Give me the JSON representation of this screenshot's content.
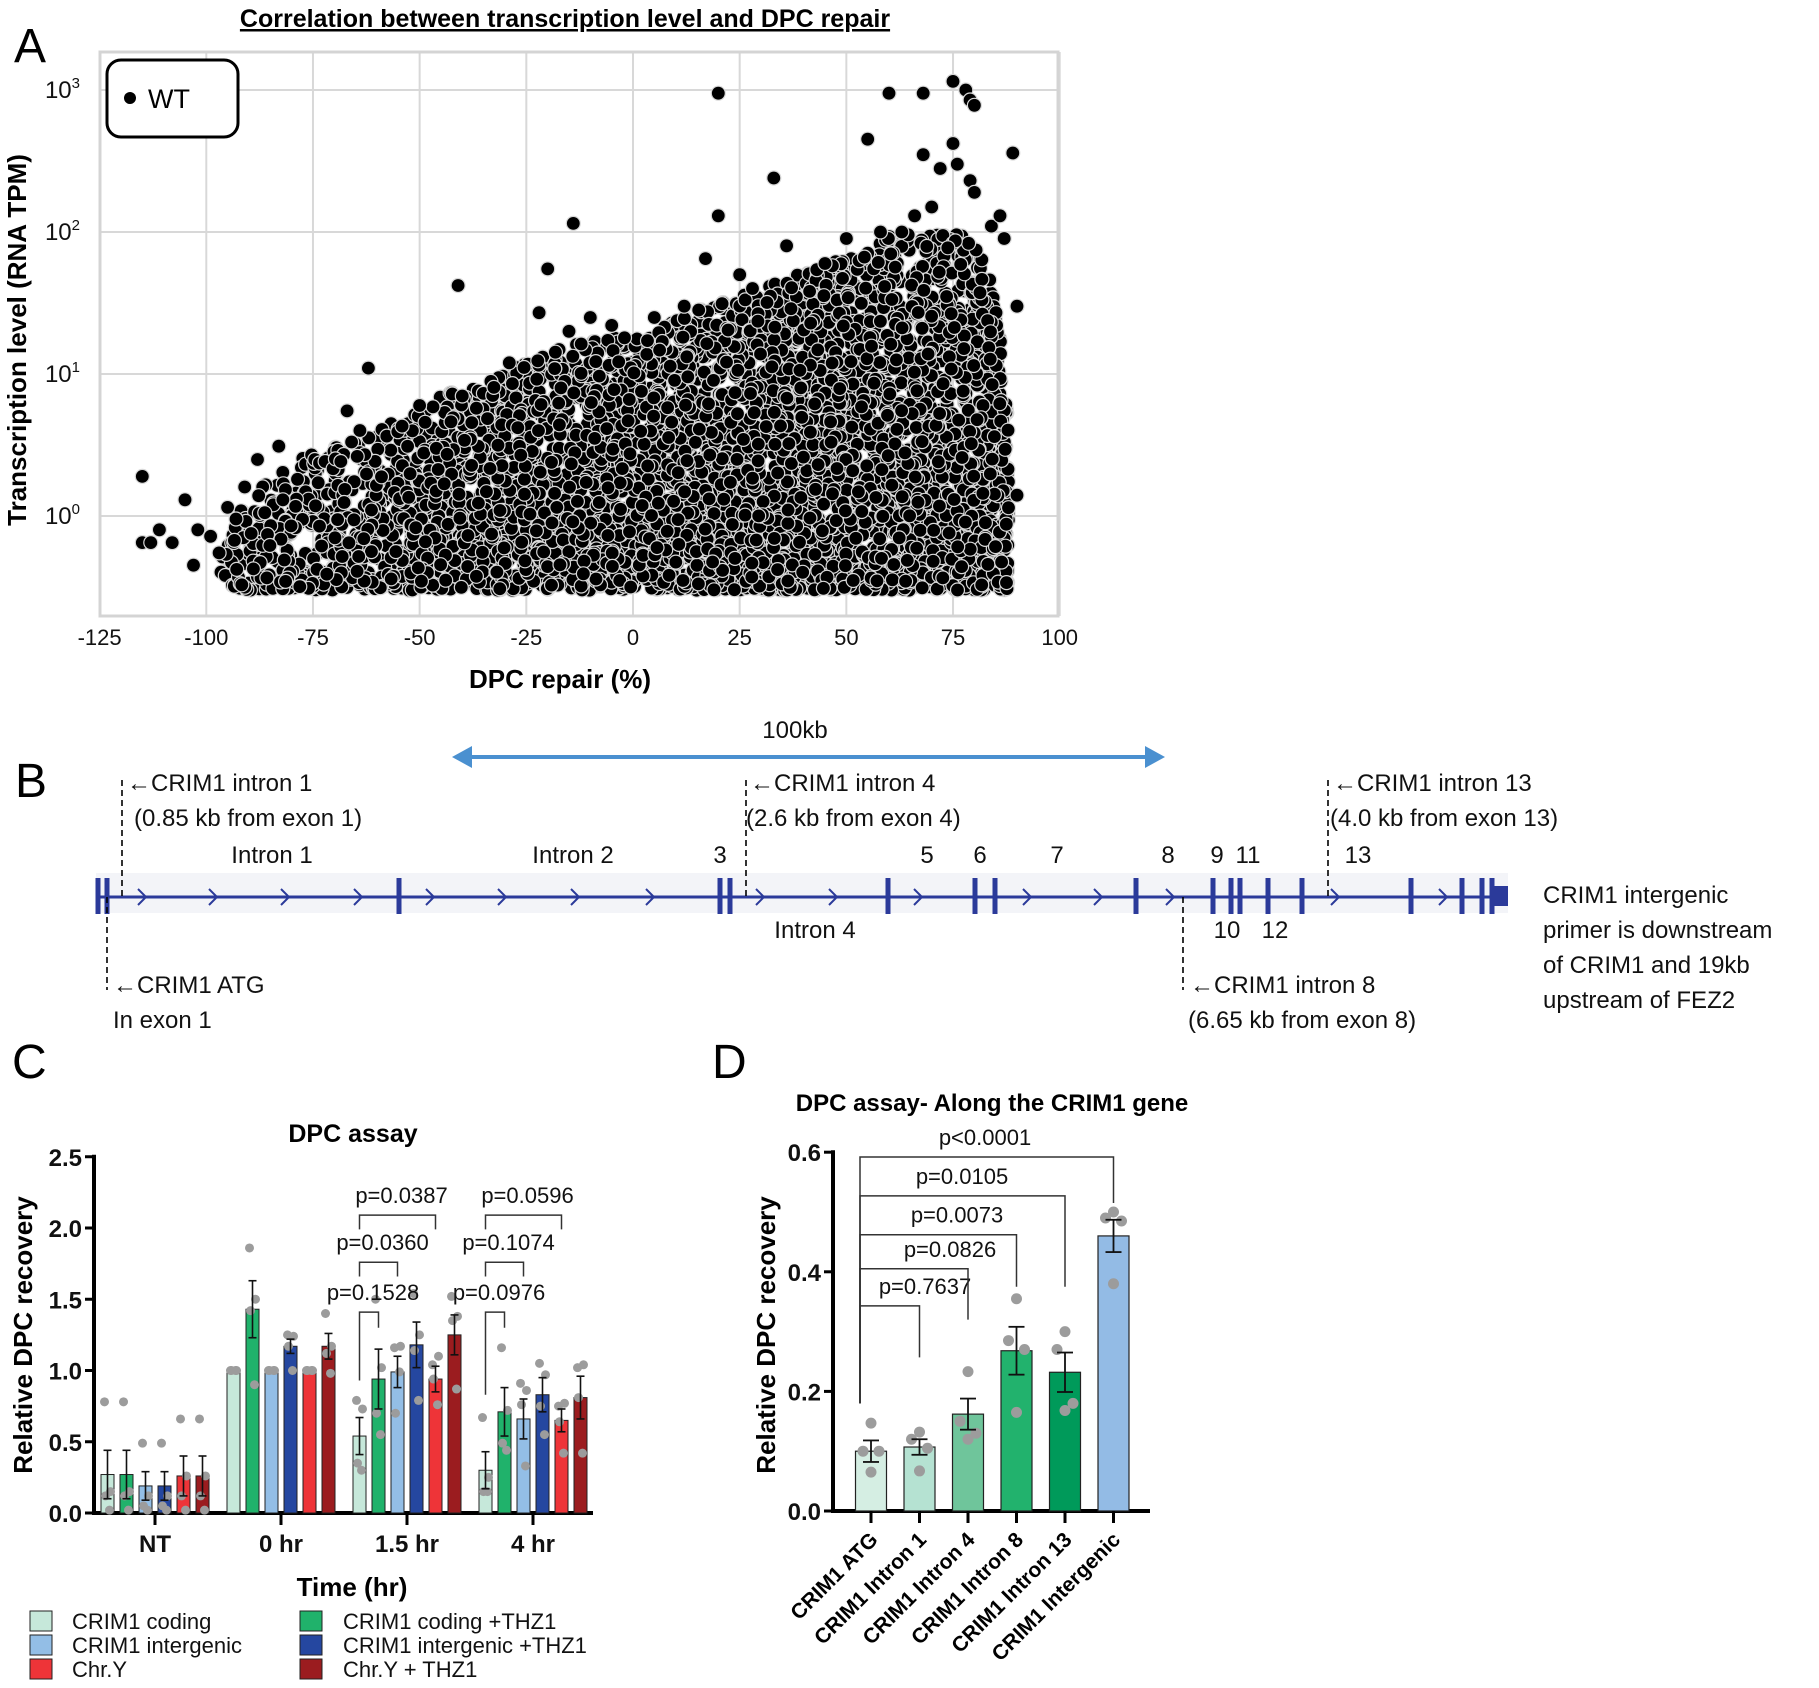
{
  "panels": {
    "a": "A",
    "b": "B",
    "c": "C",
    "d": "D"
  },
  "chart_data": [
    {
      "id": "A",
      "type": "scatter",
      "title": "Correlation between transcription level and DPC repair",
      "xlabel": "DPC repair (%)",
      "ylabel": "Transcription level (RNA TPM)",
      "xlim": [
        -125,
        100
      ],
      "ylim": [
        0.2,
        1850
      ],
      "yscale": "log",
      "xticks": [
        "-125",
        "-100",
        "-75",
        "-50",
        "-25",
        "0",
        "25",
        "50",
        "75",
        "100"
      ],
      "yticks": [
        {
          "value": 1000,
          "base": "10",
          "exp": "3"
        },
        {
          "value": 100,
          "base": "10",
          "exp": "2"
        },
        {
          "value": 10,
          "base": "10",
          "exp": "1"
        },
        {
          "value": 1,
          "base": "10",
          "exp": "0"
        }
      ],
      "grid": true,
      "legend": {
        "position": "top-left",
        "entries": [
          "WT"
        ]
      },
      "series": [
        {
          "name": "WT",
          "color": "#000000",
          "outliers": [
            [
              20,
              950
            ],
            [
              60,
              950
            ],
            [
              68,
              950
            ],
            [
              75,
              1150
            ],
            [
              78,
              1000
            ],
            [
              79,
              850
            ],
            [
              80,
              780
            ],
            [
              55,
              450
            ],
            [
              75,
              420
            ],
            [
              89,
              360
            ],
            [
              68,
              350
            ],
            [
              72,
              280
            ],
            [
              76,
              300
            ],
            [
              79,
              230
            ],
            [
              80,
              190
            ],
            [
              33,
              240
            ],
            [
              20,
              130
            ],
            [
              -14,
              115
            ],
            [
              -41,
              42
            ],
            [
              -20,
              55
            ],
            [
              -62,
              11
            ],
            [
              -115,
              1.9
            ],
            [
              -115,
              0.65
            ],
            [
              -113,
              0.65
            ],
            [
              -111,
              0.8
            ],
            [
              -108,
              0.65
            ],
            [
              -105,
              1.3
            ],
            [
              -103,
              0.45
            ],
            [
              -102,
              0.8
            ],
            [
              -99,
              0.72
            ],
            [
              90,
              30
            ],
            [
              90,
              1.4
            ],
            [
              17,
              65
            ],
            [
              66,
              130
            ],
            [
              70,
              150
            ],
            [
              36,
              80
            ],
            [
              -22,
              27
            ],
            [
              -29,
              12
            ],
            [
              -67,
              5.5
            ],
            [
              -64,
              4
            ],
            [
              -50,
              6
            ],
            [
              -40,
              7
            ],
            [
              -83,
              3.1
            ],
            [
              -88,
              2.5
            ],
            [
              -91,
              1.6
            ],
            [
              -95,
              1.15
            ],
            [
              -97,
              0.55
            ],
            [
              45,
              60
            ],
            [
              50,
              90
            ],
            [
              58,
              100
            ],
            [
              63,
              100
            ],
            [
              84,
              110
            ],
            [
              86,
              130
            ],
            [
              87,
              90
            ],
            [
              -5,
              22
            ],
            [
              5,
              25
            ],
            [
              12,
              30
            ],
            [
              25,
              50
            ],
            [
              28,
              40
            ],
            [
              -10,
              25
            ],
            [
              -15,
              20
            ],
            [
              -2,
              18
            ]
          ],
          "cloud": {
            "x_range": [
              -97,
              88
            ],
            "lower": 0.3,
            "upper_envelope": [
              [
                -97,
                0.45
              ],
              [
                -92,
                1.2
              ],
              [
                -85,
                1.8
              ],
              [
                -78,
                2.5
              ],
              [
                -72,
                3
              ],
              [
                -65,
                3.5
              ],
              [
                -55,
                5
              ],
              [
                -45,
                7
              ],
              [
                -35,
                9
              ],
              [
                -25,
                12
              ],
              [
                -15,
                16
              ],
              [
                -5,
                18
              ],
              [
                5,
                20
              ],
              [
                15,
                28
              ],
              [
                25,
                35
              ],
              [
                35,
                45
              ],
              [
                45,
                60
              ],
              [
                55,
                80
              ],
              [
                62,
                100
              ],
              [
                70,
                95
              ],
              [
                78,
                100
              ],
              [
                83,
                60
              ],
              [
                86,
                20
              ],
              [
                88,
                4
              ]
            ],
            "approx_points": 5200
          }
        }
      ]
    },
    {
      "id": "C",
      "type": "bar",
      "title": "DPC assay",
      "xlabel": "Time (hr)",
      "ylabel": "Relative DPC recovery",
      "ylim": [
        0,
        2.5
      ],
      "yticks": [
        "0.0",
        "0.5",
        "1.0",
        "1.5",
        "2.0",
        "2.5"
      ],
      "categories": [
        "NT",
        "0 hr",
        "1.5 hr",
        "4 hr"
      ],
      "series": [
        {
          "name": "CRIM1 coding",
          "color": "#c6e8da",
          "values": [
            0.27,
            1.0,
            0.54,
            0.3
          ],
          "sem": [
            0.17,
            0,
            0.13,
            0.13
          ],
          "points": [
            [
              0.78,
              0.15,
              0.12,
              0.02
            ],
            [
              1,
              1,
              1,
              1
            ],
            [
              0.79,
              0.73,
              0.35,
              0.3
            ],
            [
              0.67,
              0.25,
              0.15,
              0.15
            ]
          ]
        },
        {
          "name": "CRIM1 coding  +THZ1",
          "color": "#20b26b",
          "values": [
            0.27,
            1.43,
            0.94,
            0.71
          ],
          "sem": [
            0.17,
            0.2,
            0.21,
            0.17
          ],
          "points": [
            [
              0.78,
              0.15,
              0.12,
              0.02
            ],
            [
              1.86,
              1.5,
              1.42,
              0.9
            ],
            [
              1.5,
              1.02,
              0.7,
              0.55
            ],
            [
              1.16,
              0.72,
              0.49,
              0.44
            ]
          ]
        },
        {
          "name": "CRIM1 intergenic",
          "color": "#93bee6",
          "values": [
            0.19,
            1.0,
            0.99,
            0.66
          ],
          "sem": [
            0.1,
            0,
            0.11,
            0.14
          ],
          "points": [
            [
              0.49,
              0.12,
              0.05,
              0.02
            ],
            [
              1,
              1,
              1,
              1
            ],
            [
              1.16,
              1.17,
              0.7,
              0.99
            ],
            [
              0.91,
              0.86,
              0.76,
              0.33
            ]
          ]
        },
        {
          "name": "CRIM1 intergenic +THZ1",
          "color": "#2547a0",
          "values": [
            0.19,
            1.17,
            1.18,
            0.83
          ],
          "sem": [
            0.1,
            0.05,
            0.16,
            0.12
          ],
          "points": [
            [
              0.49,
              0.12,
              0.05,
              0.02
            ],
            [
              1.25,
              1.24,
              1.17,
              1.0
            ],
            [
              1.54,
              1.25,
              1.14,
              0.79
            ],
            [
              1.05,
              0.97,
              0.75,
              0.55
            ]
          ]
        },
        {
          "name": "Chr.Y",
          "color": "#ee3438",
          "values": [
            0.26,
            1.0,
            0.94,
            0.65
          ],
          "sem": [
            0.14,
            0,
            0.09,
            0.08
          ],
          "points": [
            [
              0.66,
              0.26,
              0.12,
              0.02
            ],
            [
              1,
              1,
              1,
              1
            ],
            [
              1.04,
              1.1,
              0.94,
              0.76
            ],
            [
              0.75,
              0.77,
              0.64,
              0.42
            ]
          ]
        },
        {
          "name": "Chr.Y + THZ1",
          "color": "#9b1c1f",
          "values": [
            0.26,
            1.17,
            1.25,
            0.81
          ],
          "sem": [
            0.14,
            0.09,
            0.14,
            0.15
          ],
          "points": [
            [
              0.66,
              0.26,
              0.12,
              0.02
            ],
            [
              1.4,
              1.17,
              1.12,
              0.98
            ],
            [
              1.52,
              1.38,
              1.35,
              0.87
            ],
            [
              1.02,
              1.04,
              0.81,
              0.42
            ]
          ]
        }
      ],
      "legend_order": [
        0,
        1,
        2,
        3,
        4,
        5
      ],
      "comparisons": [
        {
          "category": 2,
          "from": 0,
          "to": 1,
          "y": 1.41,
          "left_end": 0.93,
          "right_end": 1.3,
          "label": "p=0.1528"
        },
        {
          "category": 2,
          "from": 0,
          "to": 2,
          "y": 1.76,
          "left_end": 1.66,
          "right_end": 1.66,
          "label": "p=0.0360"
        },
        {
          "category": 2,
          "from": 0,
          "to": 4,
          "y": 2.09,
          "left_end": 1.99,
          "right_end": 1.99,
          "label": "p=0.0387"
        },
        {
          "category": 3,
          "from": 0,
          "to": 1,
          "y": 1.41,
          "left_end": 0.83,
          "right_end": 1.3,
          "label": "p=0.0976"
        },
        {
          "category": 3,
          "from": 0,
          "to": 2,
          "y": 1.76,
          "left_end": 1.66,
          "right_end": 1.66,
          "label": "p=0.1074"
        },
        {
          "category": 3,
          "from": 0,
          "to": 4,
          "y": 2.09,
          "left_end": 1.99,
          "right_end": 1.99,
          "label": "p=0.0596"
        }
      ]
    },
    {
      "id": "D",
      "type": "bar",
      "title": "DPC assay- Along the CRIM1 gene",
      "ylabel": "Relative DPC recovery",
      "ylim": [
        0,
        0.6
      ],
      "yticks": [
        "0.0",
        "0.2",
        "0.4",
        "0.6"
      ],
      "categories": [
        "CRIM1 ATG",
        "CRIM1 Intron 1",
        "CRIM1 Intron 4",
        "CRIM1 Intron 8",
        "CRIM1 Intron 13",
        "CRIM1 Intergenic"
      ],
      "colors": [
        "#d5eee3",
        "#b5e2d2",
        "#6fc59b",
        "#22b26d",
        "#009a5a",
        "#93bbe5"
      ],
      "values": [
        0.1,
        0.107,
        0.162,
        0.268,
        0.232,
        0.46
      ],
      "sem": [
        0.018,
        0.013,
        0.026,
        0.04,
        0.033,
        0.027
      ],
      "points": [
        [
          0.147,
          0.1,
          0.1,
          0.065
        ],
        [
          0.132,
          0.12,
          0.105,
          0.067
        ],
        [
          0.233,
          0.15,
          0.13,
          0.12
        ],
        [
          0.355,
          0.285,
          0.27,
          0.165
        ],
        [
          0.3,
          0.27,
          0.18,
          0.168
        ],
        [
          0.5,
          0.49,
          0.485,
          0.38
        ]
      ],
      "comparisons": [
        {
          "from": 0,
          "to": 1,
          "y": 0.343,
          "left_end": 0.18,
          "right_end": 0.257,
          "label": "p=0.7637"
        },
        {
          "from": 0,
          "to": 2,
          "y": 0.405,
          "left_end": 0.18,
          "right_end": 0.32,
          "label": "p=0.0826"
        },
        {
          "from": 0,
          "to": 3,
          "y": 0.462,
          "left_end": 0.18,
          "right_end": 0.375,
          "label": "p=0.0073"
        },
        {
          "from": 0,
          "to": 4,
          "y": 0.527,
          "left_end": 0.18,
          "right_end": 0.375,
          "label": "p=0.0105"
        },
        {
          "from": 0,
          "to": 5,
          "y": 0.592,
          "left_end": 0.18,
          "right_end": 0.515,
          "label": "p<0.0001"
        }
      ]
    }
  ],
  "gene_diagram": {
    "gene_color": "#2b3a9a",
    "scale_color": "#4a90d0",
    "scale_label": "100kb",
    "primers": {
      "intron1": [
        "←CRIM1 intron 1",
        "(0.85 kb from exon 1)"
      ],
      "intron4": [
        "←CRIM1 intron 4",
        "(2.6 kb from exon 4)"
      ],
      "intron13": [
        "←CRIM1 intron 13",
        "(4.0 kb from exon 13)"
      ],
      "atg": [
        "←CRIM1 ATG",
        "In exon 1"
      ],
      "intron8": [
        "←CRIM1 intron 8",
        "(6.65 kb from exon 8)"
      ]
    },
    "labels_above": {
      "intron1": "Intron 1",
      "intron2": "Intron 2",
      "e3": "3",
      "e5": "5",
      "e6": "6",
      "e7": "7",
      "e8": "8",
      "e9": "9",
      "e11": "11",
      "e13": "13"
    },
    "labels_below": {
      "intron4": "Intron 4",
      "e10": "10",
      "e12": "12"
    },
    "intergenic_note": [
      "CRIM1 intergenic",
      "primer is downstream",
      "of CRIM1 and 19kb",
      "upstream of FEZ2"
    ]
  }
}
